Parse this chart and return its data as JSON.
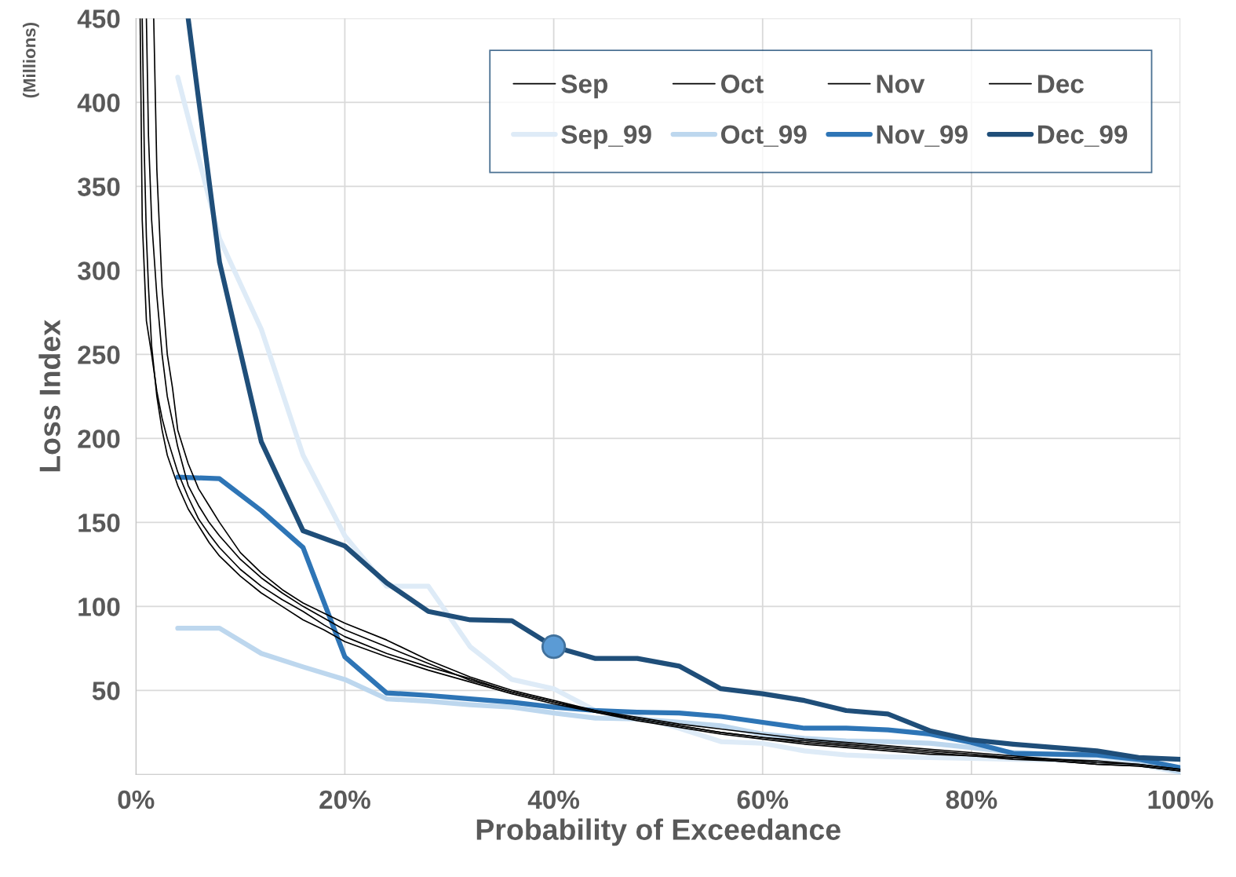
{
  "chart_data": {
    "type": "line",
    "xlabel": "Probability of Exceedance",
    "ylabel": "Loss Index",
    "annotations": [
      "(Millions)"
    ],
    "xlim": [
      0,
      1
    ],
    "xticks": [
      {
        "value": 0,
        "label": "0%"
      },
      {
        "value": 0.2,
        "label": "20%"
      },
      {
        "value": 0.4,
        "label": "40%"
      },
      {
        "value": 0.6,
        "label": "60%"
      },
      {
        "value": 0.8,
        "label": "80%"
      },
      {
        "value": 1,
        "label": "100%"
      }
    ],
    "ylim": [
      0,
      450
    ],
    "yticks": [
      50,
      100,
      150,
      200,
      250,
      300,
      350,
      400,
      450
    ],
    "grid": true,
    "legend": "top right",
    "marker": "none",
    "line_style": "solid",
    "series": [
      {
        "name": "Sep",
        "color": "#000000",
        "x": [
          0.004,
          0.006,
          0.008,
          0.01,
          0.015,
          0.02,
          0.025,
          0.03,
          0.04,
          0.05,
          0.06,
          0.07,
          0.08,
          0.1,
          0.12,
          0.14,
          0.16,
          0.18,
          0.2,
          0.24,
          0.28,
          0.32,
          0.36,
          0.4,
          0.44,
          0.48,
          0.52,
          0.56,
          0.6,
          0.64,
          0.68,
          0.72,
          0.76,
          0.8,
          0.84,
          0.88,
          0.92,
          0.96,
          1.0
        ],
        "values": [
          450,
          330,
          300,
          270,
          250,
          228,
          212,
          200,
          180,
          165,
          152,
          143,
          135,
          122,
          112,
          104,
          97,
          89,
          82,
          72,
          64,
          57,
          49,
          43,
          38,
          33,
          29,
          25,
          22,
          19,
          17,
          15,
          13,
          11,
          10,
          8,
          6,
          5,
          2
        ]
      },
      {
        "name": "Oct",
        "color": "#000000",
        "x": [
          0.017,
          0.02,
          0.025,
          0.03,
          0.035,
          0.04,
          0.05,
          0.06,
          0.07,
          0.08,
          0.1,
          0.12,
          0.14,
          0.16,
          0.18,
          0.2,
          0.24,
          0.28,
          0.32,
          0.36,
          0.4,
          0.44,
          0.48,
          0.52,
          0.56,
          0.6,
          0.64,
          0.68,
          0.72,
          0.76,
          0.8,
          0.84,
          0.88,
          0.92,
          0.96,
          1.0
        ],
        "values": [
          450,
          360,
          290,
          250,
          230,
          205,
          185,
          170,
          160,
          150,
          132,
          120,
          110,
          102,
          96,
          90,
          80,
          68,
          58,
          50,
          44,
          38,
          34,
          30,
          27,
          24,
          21,
          19,
          17,
          15,
          13,
          11,
          9,
          7,
          6,
          3
        ]
      },
      {
        "name": "Nov",
        "color": "#000000",
        "x": [
          0.01,
          0.012,
          0.015,
          0.02,
          0.025,
          0.03,
          0.04,
          0.05,
          0.06,
          0.07,
          0.08,
          0.1,
          0.12,
          0.14,
          0.16,
          0.18,
          0.2,
          0.24,
          0.28,
          0.32,
          0.36,
          0.4,
          0.44,
          0.48,
          0.52,
          0.56,
          0.6,
          0.64,
          0.68,
          0.72,
          0.76,
          0.8,
          0.84,
          0.88,
          0.92,
          0.96,
          1.0
        ],
        "values": [
          450,
          380,
          330,
          285,
          250,
          225,
          195,
          172,
          160,
          150,
          142,
          128,
          117,
          108,
          100,
          93,
          86,
          76,
          66,
          56,
          49,
          43,
          37,
          33,
          29,
          25,
          22,
          20,
          18,
          16,
          14,
          12,
          10,
          9,
          8,
          6,
          3
        ]
      },
      {
        "name": "Dec",
        "color": "#000000",
        "x": [
          0.006,
          0.008,
          0.01,
          0.012,
          0.015,
          0.02,
          0.025,
          0.03,
          0.04,
          0.05,
          0.06,
          0.07,
          0.08,
          0.1,
          0.12,
          0.14,
          0.16,
          0.18,
          0.2,
          0.24,
          0.28,
          0.32,
          0.36,
          0.4,
          0.44,
          0.48,
          0.52,
          0.56,
          0.6,
          0.64,
          0.68,
          0.72,
          0.76,
          0.8,
          0.84,
          0.88,
          0.92,
          0.96,
          1.0
        ],
        "values": [
          450,
          370,
          320,
          290,
          255,
          225,
          205,
          190,
          172,
          158,
          148,
          138,
          130,
          118,
          108,
          100,
          92,
          86,
          79,
          70,
          62,
          55,
          48,
          42,
          37,
          32,
          28,
          24,
          21,
          18,
          16,
          14,
          12,
          11,
          9,
          8,
          6,
          5,
          2
        ]
      },
      {
        "name": "Sep_99",
        "color": "#deebf7",
        "x": [
          0.04,
          0.08,
          0.12,
          0.16,
          0.2,
          0.24,
          0.28,
          0.32,
          0.36,
          0.4,
          0.44,
          0.48,
          0.52,
          0.56,
          0.6,
          0.64,
          0.68,
          0.72,
          0.76,
          0.8,
          0.84,
          0.88,
          0.92,
          0.96,
          1.0
        ],
        "values": [
          415,
          319,
          265,
          190,
          142,
          112,
          112,
          76,
          56.5,
          51,
          38,
          34.5,
          27.5,
          19.5,
          18.5,
          14,
          11.5,
          10.5,
          10,
          9.5,
          9,
          8.5,
          8,
          6,
          1
        ]
      },
      {
        "name": "Oct_99",
        "color": "#bdd7ee",
        "x": [
          0.04,
          0.08,
          0.12,
          0.16,
          0.2,
          0.24,
          0.28,
          0.32,
          0.36,
          0.4,
          0.44,
          0.48,
          0.52,
          0.56,
          0.6,
          0.64,
          0.68,
          0.72,
          0.76,
          0.8,
          0.84,
          0.88,
          0.92,
          0.96,
          1.0
        ],
        "values": [
          87,
          87,
          72,
          64,
          56.5,
          45,
          43.5,
          41.5,
          40,
          36.5,
          33.5,
          33,
          31,
          29,
          24,
          21.5,
          20,
          19.5,
          18.5,
          16,
          13,
          12,
          11.5,
          8,
          1.5
        ]
      },
      {
        "name": "Nov_99",
        "color": "#2e75b6",
        "x": [
          0.04,
          0.08,
          0.12,
          0.16,
          0.2,
          0.24,
          0.28,
          0.32,
          0.36,
          0.4,
          0.44,
          0.48,
          0.52,
          0.56,
          0.6,
          0.64,
          0.68,
          0.72,
          0.76,
          0.8,
          0.84,
          0.88,
          0.92,
          0.96,
          1.0
        ],
        "values": [
          177,
          176,
          157,
          135,
          70,
          48.5,
          47,
          45,
          43,
          40,
          38,
          37,
          36.5,
          34.5,
          31,
          27.5,
          27.5,
          26.5,
          24,
          19,
          12.5,
          12,
          11.5,
          9,
          4
        ]
      },
      {
        "name": "Dec_99",
        "color": "#1f4e79",
        "x": [
          0.05,
          0.08,
          0.12,
          0.16,
          0.2,
          0.24,
          0.28,
          0.32,
          0.36,
          0.4,
          0.44,
          0.48,
          0.52,
          0.56,
          0.6,
          0.64,
          0.68,
          0.72,
          0.76,
          0.8,
          0.84,
          0.88,
          0.92,
          0.96,
          1.0
        ],
        "values": [
          450,
          305,
          198,
          145,
          136,
          114,
          97,
          92,
          91.5,
          76,
          69,
          69,
          64.5,
          51,
          48,
          44,
          38,
          36,
          26,
          20.5,
          18,
          16,
          14,
          10,
          9
        ]
      },
      {
        "type": "scatter",
        "marker": "circle",
        "color": "#5b9bd5",
        "x": [
          0.4
        ],
        "values": [
          76
        ]
      }
    ]
  }
}
